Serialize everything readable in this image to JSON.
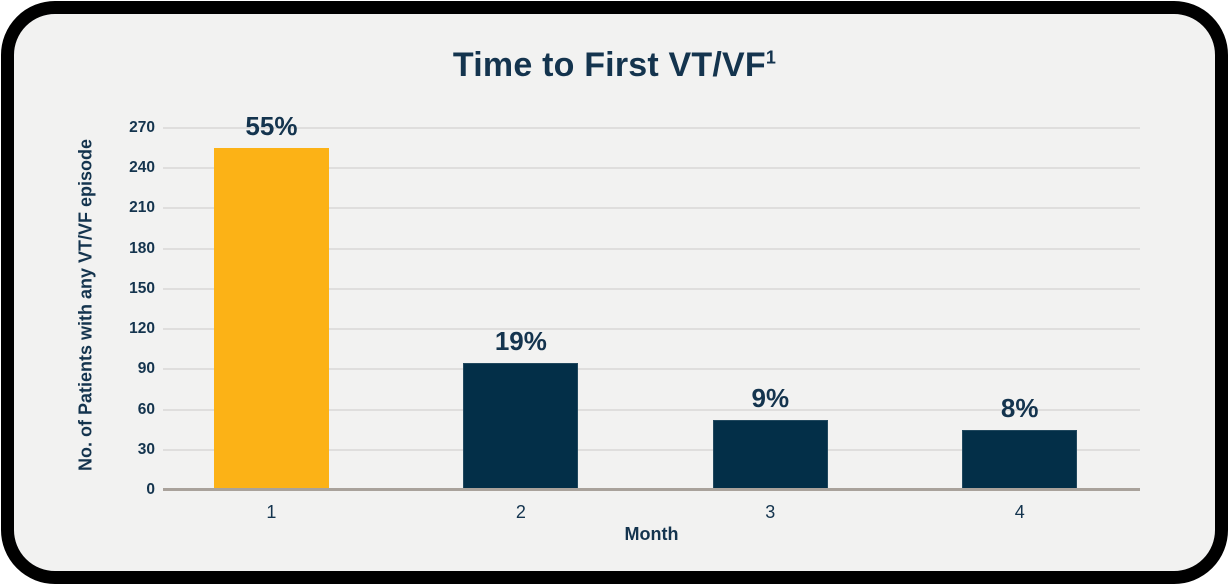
{
  "chart": {
    "title": "Time to First VT/VF",
    "title_superscript": "1",
    "xlabel": "Month",
    "ylabel": "No. of Patients with any VT/VF episode"
  },
  "chart_data": {
    "type": "bar",
    "title": "Time to First VT/VF¹",
    "categories": [
      "1",
      "2",
      "3",
      "4"
    ],
    "values": [
      255,
      95,
      52,
      45
    ],
    "bar_labels": [
      "55%",
      "19%",
      "9%",
      "8%"
    ],
    "bar_colors": [
      "#FCB216",
      "#032F48",
      "#032F48",
      "#032F48"
    ],
    "xlabel": "Month",
    "ylabel": "No. of Patients with any VT/VF episode",
    "y_ticks": [
      0,
      30,
      60,
      90,
      120,
      150,
      180,
      210,
      240,
      270
    ],
    "ylim": [
      0,
      270
    ],
    "grid": true,
    "legend": "none"
  },
  "colors": {
    "frame": "#000000",
    "background": "#F2F2F1",
    "text": "#14344E",
    "gridline": "#DFDEDD",
    "axis_line": "#A9A29B",
    "highlight_bar": "#FCB216",
    "default_bar": "#032F48"
  }
}
